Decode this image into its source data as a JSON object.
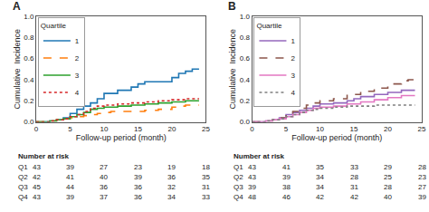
{
  "chart_data": [
    {
      "type": "step",
      "title": "A",
      "xlabel": "Follow-up period (month)",
      "ylabel": "Cumulative  Incidence",
      "xlim": [
        0,
        25
      ],
      "ylim": [
        0,
        1.0
      ],
      "xticks": [
        0,
        5,
        10,
        15,
        20,
        25
      ],
      "yticks": [
        {
          "value": 0.0,
          "label": "0.0"
        },
        0.2,
        0.4,
        0.6,
        0.8,
        {
          "value": 1.0,
          "label": "1.0"
        }
      ],
      "grid": false,
      "legend": "upper left",
      "legend_title": "Quartile",
      "series": [
        {
          "name": "1",
          "line_style": "solid",
          "x": [
            0,
            2,
            3,
            4,
            5,
            6,
            7,
            8,
            9,
            10,
            12,
            14,
            15,
            16,
            20,
            21,
            22,
            23,
            24
          ],
          "values": [
            0,
            0.01,
            0.02,
            0.04,
            0.08,
            0.12,
            0.15,
            0.18,
            0.22,
            0.27,
            0.3,
            0.33,
            0.36,
            0.38,
            0.42,
            0.46,
            0.48,
            0.5,
            0.5
          ]
        },
        {
          "name": "2",
          "line_style": "dashed",
          "x": [
            0,
            2,
            3,
            4,
            5,
            6,
            7,
            8,
            9,
            10,
            11,
            12,
            14,
            16,
            18,
            20,
            21,
            22,
            23,
            24
          ],
          "values": [
            0,
            0.01,
            0.02,
            0.03,
            0.04,
            0.05,
            0.06,
            0.07,
            0.08,
            0.09,
            0.1,
            0.1,
            0.1,
            0.11,
            0.12,
            0.14,
            0.15,
            0.16,
            0.16,
            0.16
          ]
        },
        {
          "name": "3",
          "line_style": "solid",
          "x": [
            0,
            2,
            3,
            4,
            5,
            6,
            7,
            8,
            9,
            10,
            12,
            14,
            16,
            18,
            20,
            22,
            23,
            24
          ],
          "values": [
            0,
            0.01,
            0.02,
            0.03,
            0.05,
            0.07,
            0.09,
            0.12,
            0.13,
            0.14,
            0.15,
            0.16,
            0.17,
            0.18,
            0.19,
            0.2,
            0.2,
            0.2
          ]
        },
        {
          "name": "4",
          "line_style": "dotted",
          "x": [
            0,
            2,
            3,
            4,
            5,
            6,
            7,
            8,
            9,
            10,
            12,
            14,
            16,
            18,
            20,
            22,
            23,
            24
          ],
          "values": [
            0,
            0.01,
            0.02,
            0.03,
            0.05,
            0.07,
            0.1,
            0.13,
            0.15,
            0.16,
            0.17,
            0.18,
            0.19,
            0.2,
            0.21,
            0.22,
            0.22,
            0.22
          ]
        }
      ],
      "risk_table": {
        "title": "Number at risk",
        "rows": [
          "Q1",
          "Q2",
          "Q3",
          "Q4"
        ],
        "values": [
          [
            43,
            39,
            27,
            23,
            19,
            18
          ],
          [
            42,
            41,
            40,
            39,
            36,
            35
          ],
          [
            45,
            44,
            36,
            36,
            32,
            31
          ],
          [
            43,
            39,
            37,
            36,
            34,
            33
          ]
        ]
      }
    },
    {
      "type": "step",
      "title": "B",
      "xlabel": "Follow-up period (month)",
      "ylabel": "Cumulative  Incidence",
      "xlim": [
        0,
        25
      ],
      "ylim": [
        0,
        1.0
      ],
      "xticks": [
        0,
        5,
        10,
        15,
        20,
        25
      ],
      "yticks": [
        {
          "value": 0.0,
          "label": "0.0"
        },
        0.2,
        0.4,
        0.6,
        0.8,
        {
          "value": 1.0,
          "label": "1.0"
        }
      ],
      "grid": false,
      "legend": "upper left",
      "legend_title": "Quartile",
      "series": [
        {
          "name": "1",
          "line_style": "solid",
          "x": [
            0,
            2,
            3,
            4,
            5,
            6,
            7,
            8,
            9,
            10,
            12,
            14,
            15,
            16,
            18,
            20,
            22,
            23,
            24
          ],
          "values": [
            0,
            0.01,
            0.02,
            0.04,
            0.07,
            0.09,
            0.11,
            0.13,
            0.15,
            0.17,
            0.18,
            0.2,
            0.22,
            0.24,
            0.26,
            0.28,
            0.3,
            0.3,
            0.3
          ]
        },
        {
          "name": "2",
          "line_style": "dashed",
          "x": [
            0,
            2,
            3,
            4,
            5,
            6,
            7,
            8,
            9,
            10,
            12,
            14,
            16,
            18,
            20,
            22,
            23,
            24
          ],
          "values": [
            0,
            0.01,
            0.02,
            0.04,
            0.07,
            0.1,
            0.13,
            0.16,
            0.18,
            0.2,
            0.22,
            0.26,
            0.29,
            0.32,
            0.36,
            0.39,
            0.4,
            0.4
          ]
        },
        {
          "name": "3",
          "line_style": "solid",
          "x": [
            0,
            2,
            3,
            4,
            5,
            6,
            7,
            8,
            9,
            10,
            12,
            14,
            16,
            18,
            20,
            22,
            23,
            24
          ],
          "values": [
            0,
            0.01,
            0.02,
            0.03,
            0.05,
            0.07,
            0.09,
            0.11,
            0.13,
            0.14,
            0.15,
            0.17,
            0.19,
            0.21,
            0.23,
            0.25,
            0.25,
            0.25
          ]
        },
        {
          "name": "4",
          "line_style": "dotted",
          "x": [
            0,
            2,
            3,
            4,
            5,
            6,
            7,
            8,
            9,
            10,
            12,
            14,
            16,
            18,
            20,
            22,
            23,
            24
          ],
          "values": [
            0,
            0.01,
            0.02,
            0.03,
            0.05,
            0.07,
            0.09,
            0.11,
            0.12,
            0.13,
            0.14,
            0.15,
            0.15,
            0.16,
            0.16,
            0.16,
            0.16,
            0.16
          ]
        }
      ],
      "risk_table": {
        "title": "Number at risk",
        "rows": [
          "Q1",
          "Q2",
          "Q3",
          "Q4"
        ],
        "values": [
          [
            43,
            41,
            35,
            33,
            29,
            28
          ],
          [
            43,
            39,
            34,
            28,
            25,
            23
          ],
          [
            39,
            38,
            34,
            31,
            28,
            27
          ],
          [
            48,
            46,
            42,
            42,
            40,
            39
          ]
        ]
      }
    }
  ]
}
